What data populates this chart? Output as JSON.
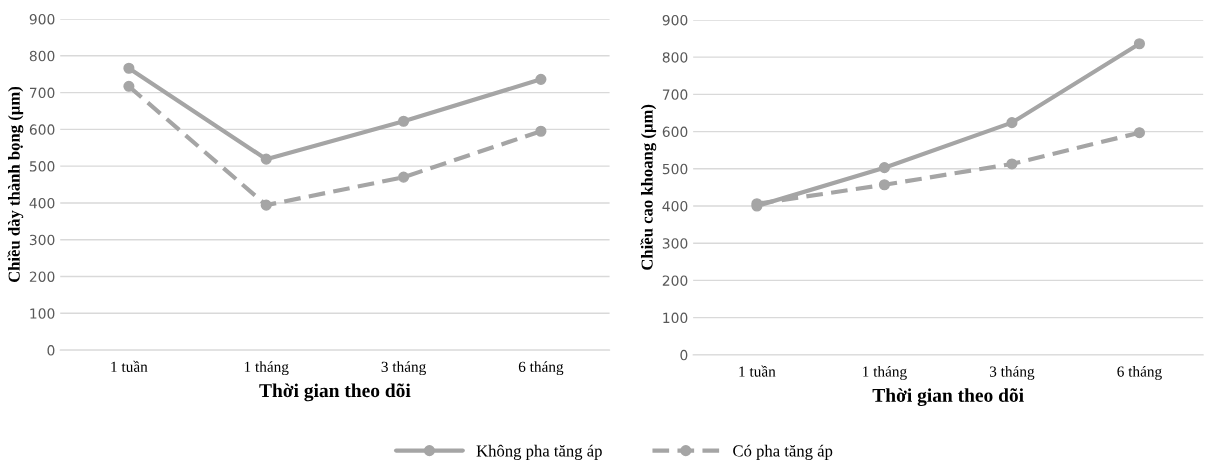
{
  "chart_data": [
    {
      "type": "line",
      "xlabel": "Thời gian theo dõi",
      "ylabel": "Chiều dày thành bọng (µm)",
      "categories": [
        "1 tuần",
        "1 tháng",
        "3 tháng",
        "6 tháng"
      ],
      "ylim": [
        0,
        900
      ],
      "yticks": [
        0,
        100,
        200,
        300,
        400,
        500,
        600,
        700,
        800,
        900
      ],
      "grid": "y",
      "marker": "circle",
      "legend": "bottom",
      "series": [
        {
          "name": "Không pha tăng áp",
          "color": "#a5a5a5",
          "line_style": "solid",
          "values": [
            766,
            519,
            622,
            736
          ]
        },
        {
          "name": "Có pha tăng áp",
          "color": "#a5a5a5",
          "line_style": "dashed",
          "values": [
            717,
            394,
            470,
            595
          ]
        }
      ]
    },
    {
      "type": "line",
      "xlabel": "Thời gian theo dõi",
      "ylabel": "Chiều cao khoang (µm)",
      "categories": [
        "1 tuần",
        "1 tháng",
        "3 tháng",
        "6 tháng"
      ],
      "ylim": [
        0,
        900
      ],
      "yticks": [
        0,
        100,
        200,
        300,
        400,
        500,
        600,
        700,
        800,
        900
      ],
      "grid": "y",
      "marker": "circle",
      "series": [
        {
          "color": "#a5a5a5",
          "line_style": "solid",
          "values": [
            400,
            503,
            624,
            836
          ]
        },
        {
          "color": "#a5a5a5",
          "line_style": "dashed",
          "values": [
            406,
            457,
            513,
            597
          ]
        }
      ]
    }
  ]
}
